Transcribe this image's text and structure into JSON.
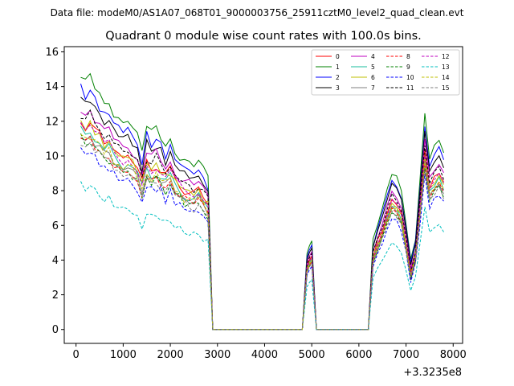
{
  "suptitle": "Data file: modeM0/AS1A07_068T01_9000003756_25911cztM0_level2_quad_clean.evt",
  "chart_data": {
    "type": "line",
    "title": "Quadrant 0 module wise count rates with 100.0s bins.",
    "xlabel": "",
    "ylabel": "",
    "x_offset_label": "+3.3235e8",
    "xlim": [
      -250,
      8200
    ],
    "ylim": [
      -0.8,
      16.3
    ],
    "x_ticks": [
      0,
      1000,
      2000,
      3000,
      4000,
      5000,
      6000,
      7000,
      8000
    ],
    "x_tick_labels": [
      "0",
      "1000",
      "2000",
      "3000",
      "4000",
      "5000",
      "6000",
      "7000",
      "8000"
    ],
    "y_ticks": [
      0,
      2,
      4,
      6,
      8,
      10,
      12,
      14,
      16
    ],
    "y_tick_labels": [
      "0",
      "2",
      "4",
      "6",
      "8",
      "10",
      "12",
      "14",
      "16"
    ],
    "grid": false,
    "legend": {
      "position": "top-right",
      "columns": 4
    },
    "segments": [
      {
        "x_start": 100,
        "x_end": 2800
      },
      {
        "x_start": 2900,
        "x_end": 4800
      },
      {
        "x_start": 4900,
        "x_end": 5000
      },
      {
        "x_start": 5100,
        "x_end": 6200
      },
      {
        "x_start": 6300,
        "x_end": 7800
      }
    ],
    "profiles": {
      "early": [
        1.0,
        0.97,
        0.99,
        0.95,
        0.93,
        0.88,
        0.9,
        0.86,
        0.84,
        0.82,
        0.84,
        0.8,
        0.76,
        0.7,
        0.8,
        0.77,
        0.79,
        0.76,
        0.73,
        0.75,
        0.71,
        0.69,
        0.67,
        0.66,
        0.65,
        0.66,
        0.62,
        0.6
      ],
      "peak": [
        0.3,
        0.33,
        0.35
      ],
      "late": [
        0.35,
        0.42,
        0.48,
        0.55,
        0.62,
        0.6,
        0.55,
        0.42,
        0.27,
        0.36,
        0.6,
        0.85,
        0.68,
        0.72,
        0.75,
        0.7
      ]
    },
    "series": [
      {
        "name": "0",
        "color": "#ff0000",
        "dashed": false,
        "level": 12.1
      },
      {
        "name": "1",
        "color": "#008000",
        "dashed": false,
        "level": 14.6
      },
      {
        "name": "2",
        "color": "#0000ff",
        "dashed": false,
        "level": 13.9
      },
      {
        "name": "3",
        "color": "#000000",
        "dashed": false,
        "level": 13.4
      },
      {
        "name": "4",
        "color": "#bf00bf",
        "dashed": false,
        "level": 12.8
      },
      {
        "name": "5",
        "color": "#1abc9c",
        "dashed": false,
        "level": 11.6
      },
      {
        "name": "6",
        "color": "#bfbf00",
        "dashed": false,
        "level": 11.8
      },
      {
        "name": "7",
        "color": "#7f7f7f",
        "dashed": false,
        "level": 11.3
      },
      {
        "name": "8",
        "color": "#ff0000",
        "dashed": true,
        "level": 11.2
      },
      {
        "name": "9",
        "color": "#008000",
        "dashed": true,
        "level": 11.0
      },
      {
        "name": "10",
        "color": "#0000ff",
        "dashed": true,
        "level": 10.4
      },
      {
        "name": "11",
        "color": "#000000",
        "dashed": true,
        "level": 12.5
      },
      {
        "name": "12",
        "color": "#bf00bf",
        "dashed": true,
        "level": 11.9
      },
      {
        "name": "13",
        "color": "#00bfbf",
        "dashed": true,
        "level": 8.2
      },
      {
        "name": "14",
        "color": "#bfbf00",
        "dashed": true,
        "level": 11.4
      },
      {
        "name": "15",
        "color": "#7f7f7f",
        "dashed": true,
        "level": 10.9
      }
    ]
  }
}
